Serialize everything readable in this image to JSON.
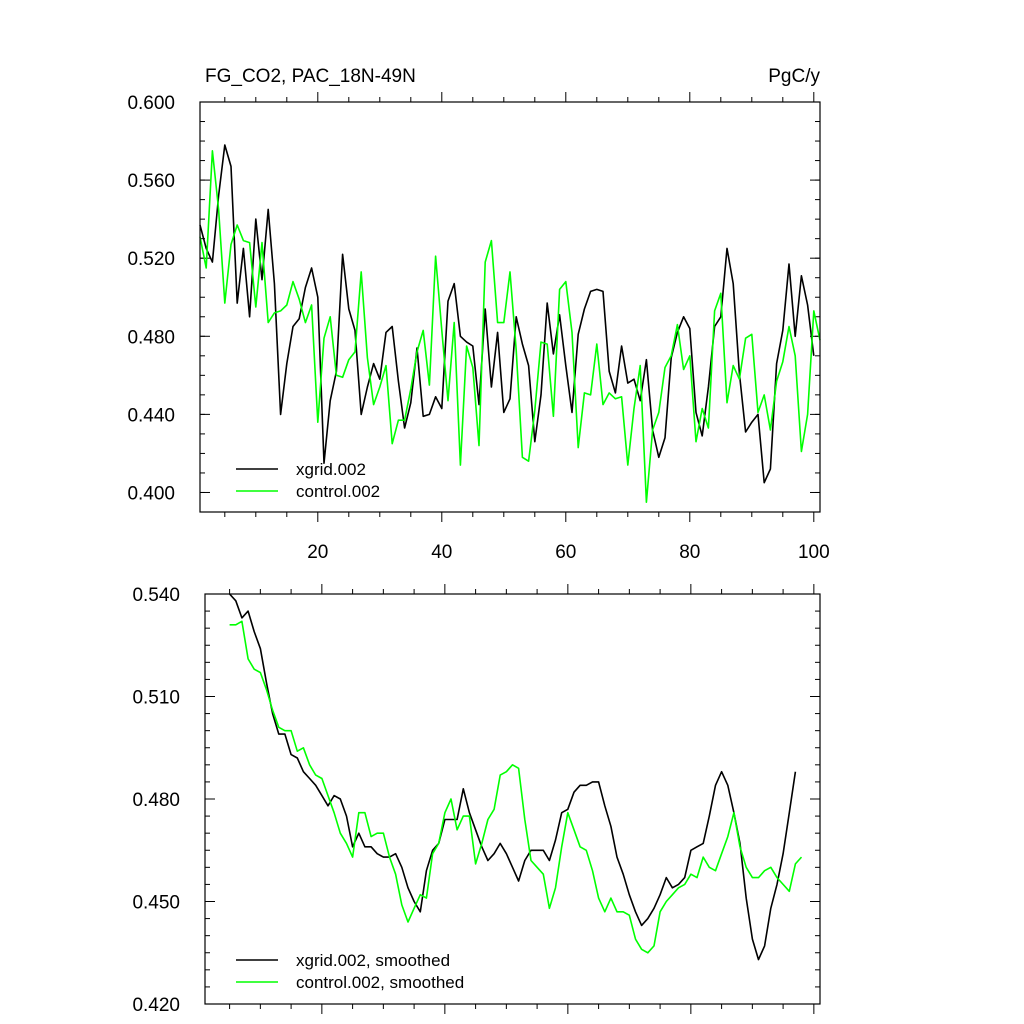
{
  "chart_data": [
    {
      "type": "line",
      "title": "FG_CO2, PAC_18N-49N",
      "units": "PgC/y",
      "xlim": [
        1,
        101
      ],
      "ylim": [
        0.39,
        0.6
      ],
      "xticks": [
        20,
        40,
        60,
        80,
        100
      ],
      "xtick_labels": [
        "20",
        "40",
        "60",
        "80",
        "100"
      ],
      "yticks": [
        0.4,
        0.44,
        0.48,
        0.52,
        0.56,
        0.6
      ],
      "ytick_labels": [
        "0.400",
        "0.440",
        "0.480",
        "0.520",
        "0.560",
        "0.600"
      ],
      "legend_position": "bottom-left",
      "series": [
        {
          "name": "xgrid.002",
          "color": "#000000",
          "x_start": 1,
          "values": [
            0.537,
            0.525,
            0.518,
            0.552,
            0.578,
            0.567,
            0.497,
            0.525,
            0.49,
            0.54,
            0.509,
            0.545,
            0.507,
            0.44,
            0.466,
            0.485,
            0.489,
            0.505,
            0.515,
            0.5,
            0.415,
            0.447,
            0.462,
            0.522,
            0.494,
            0.483,
            0.44,
            0.454,
            0.466,
            0.458,
            0.482,
            0.485,
            0.457,
            0.433,
            0.446,
            0.474,
            0.439,
            0.44,
            0.449,
            0.443,
            0.498,
            0.507,
            0.48,
            0.477,
            0.475,
            0.445,
            0.494,
            0.454,
            0.482,
            0.441,
            0.448,
            0.49,
            0.476,
            0.465,
            0.426,
            0.45,
            0.497,
            0.471,
            0.491,
            0.465,
            0.441,
            0.481,
            0.494,
            0.503,
            0.504,
            0.503,
            0.462,
            0.451,
            0.475,
            0.456,
            0.458,
            0.447,
            0.468,
            0.432,
            0.418,
            0.428,
            0.469,
            0.482,
            0.49,
            0.484,
            0.441,
            0.429,
            0.454,
            0.485,
            0.49,
            0.525,
            0.507,
            0.461,
            0.431,
            0.436,
            0.44,
            0.405,
            0.412,
            0.466,
            0.483,
            0.517,
            0.48,
            0.511,
            0.496,
            0.47
          ]
        },
        {
          "name": "control.002",
          "color": "#00ff00",
          "x_start": 1,
          "values": [
            0.531,
            0.515,
            0.575,
            0.545,
            0.497,
            0.527,
            0.537,
            0.529,
            0.528,
            0.495,
            0.528,
            0.487,
            0.492,
            0.493,
            0.496,
            0.508,
            0.499,
            0.487,
            0.496,
            0.436,
            0.479,
            0.49,
            0.46,
            0.459,
            0.468,
            0.472,
            0.513,
            0.469,
            0.445,
            0.454,
            0.465,
            0.425,
            0.437,
            0.437,
            0.453,
            0.472,
            0.483,
            0.455,
            0.521,
            0.483,
            0.447,
            0.487,
            0.414,
            0.475,
            0.464,
            0.424,
            0.518,
            0.529,
            0.487,
            0.487,
            0.513,
            0.473,
            0.418,
            0.416,
            0.442,
            0.477,
            0.476,
            0.439,
            0.504,
            0.508,
            0.482,
            0.423,
            0.451,
            0.45,
            0.476,
            0.445,
            0.451,
            0.448,
            0.449,
            0.414,
            0.443,
            0.465,
            0.395,
            0.432,
            0.441,
            0.464,
            0.47,
            0.486,
            0.463,
            0.47,
            0.426,
            0.443,
            0.433,
            0.493,
            0.502,
            0.446,
            0.465,
            0.458,
            0.479,
            0.481,
            0.441,
            0.45,
            0.432,
            0.457,
            0.467,
            0.485,
            0.47,
            0.421,
            0.44,
            0.493,
            0.478
          ]
        }
      ]
    },
    {
      "type": "line",
      "title": "",
      "xlim": [
        1,
        101
      ],
      "ylim": [
        0.42,
        0.54
      ],
      "yticks": [
        0.42,
        0.45,
        0.48,
        0.51,
        0.54
      ],
      "ytick_labels": [
        "0.420",
        "0.450",
        "0.480",
        "0.510",
        "0.540"
      ],
      "legend_position": "bottom-left",
      "series": [
        {
          "name": "xgrid.002, smoothed",
          "color": "#000000",
          "x_start": 5,
          "values": [
            0.54,
            0.538,
            0.533,
            0.535,
            0.529,
            0.524,
            0.514,
            0.505,
            0.499,
            0.499,
            0.493,
            0.492,
            0.488,
            0.486,
            0.484,
            0.481,
            0.478,
            0.481,
            0.48,
            0.475,
            0.466,
            0.47,
            0.466,
            0.466,
            0.464,
            0.463,
            0.463,
            0.464,
            0.46,
            0.454,
            0.45,
            0.447,
            0.459,
            0.465,
            0.467,
            0.474,
            0.474,
            0.474,
            0.483,
            0.476,
            0.471,
            0.466,
            0.462,
            0.464,
            0.467,
            0.464,
            0.46,
            0.456,
            0.462,
            0.465,
            0.465,
            0.465,
            0.462,
            0.468,
            0.476,
            0.477,
            0.482,
            0.484,
            0.484,
            0.485,
            0.485,
            0.478,
            0.472,
            0.463,
            0.458,
            0.452,
            0.447,
            0.443,
            0.445,
            0.448,
            0.452,
            0.457,
            0.454,
            0.455,
            0.457,
            0.465,
            0.466,
            0.467,
            0.475,
            0.484,
            0.488,
            0.484,
            0.476,
            0.467,
            0.451,
            0.439,
            0.433,
            0.437,
            0.448,
            0.455,
            0.464,
            0.476,
            0.488
          ]
        },
        {
          "name": "control.002, smoothed",
          "color": "#00ff00",
          "x_start": 5,
          "values": [
            0.531,
            0.531,
            0.532,
            0.521,
            0.518,
            0.517,
            0.512,
            0.506,
            0.501,
            0.5,
            0.5,
            0.494,
            0.495,
            0.49,
            0.487,
            0.486,
            0.481,
            0.476,
            0.47,
            0.467,
            0.463,
            0.476,
            0.476,
            0.469,
            0.47,
            0.47,
            0.463,
            0.458,
            0.449,
            0.444,
            0.448,
            0.452,
            0.451,
            0.464,
            0.467,
            0.476,
            0.48,
            0.471,
            0.475,
            0.475,
            0.461,
            0.467,
            0.474,
            0.477,
            0.487,
            0.488,
            0.49,
            0.489,
            0.474,
            0.462,
            0.46,
            0.458,
            0.448,
            0.454,
            0.466,
            0.476,
            0.471,
            0.466,
            0.465,
            0.459,
            0.451,
            0.447,
            0.451,
            0.447,
            0.447,
            0.446,
            0.439,
            0.436,
            0.435,
            0.437,
            0.447,
            0.45,
            0.452,
            0.454,
            0.455,
            0.458,
            0.457,
            0.463,
            0.46,
            0.459,
            0.464,
            0.469,
            0.476,
            0.466,
            0.46,
            0.457,
            0.457,
            0.459,
            0.46,
            0.457,
            0.455,
            0.453,
            0.461,
            0.463
          ]
        }
      ]
    }
  ]
}
